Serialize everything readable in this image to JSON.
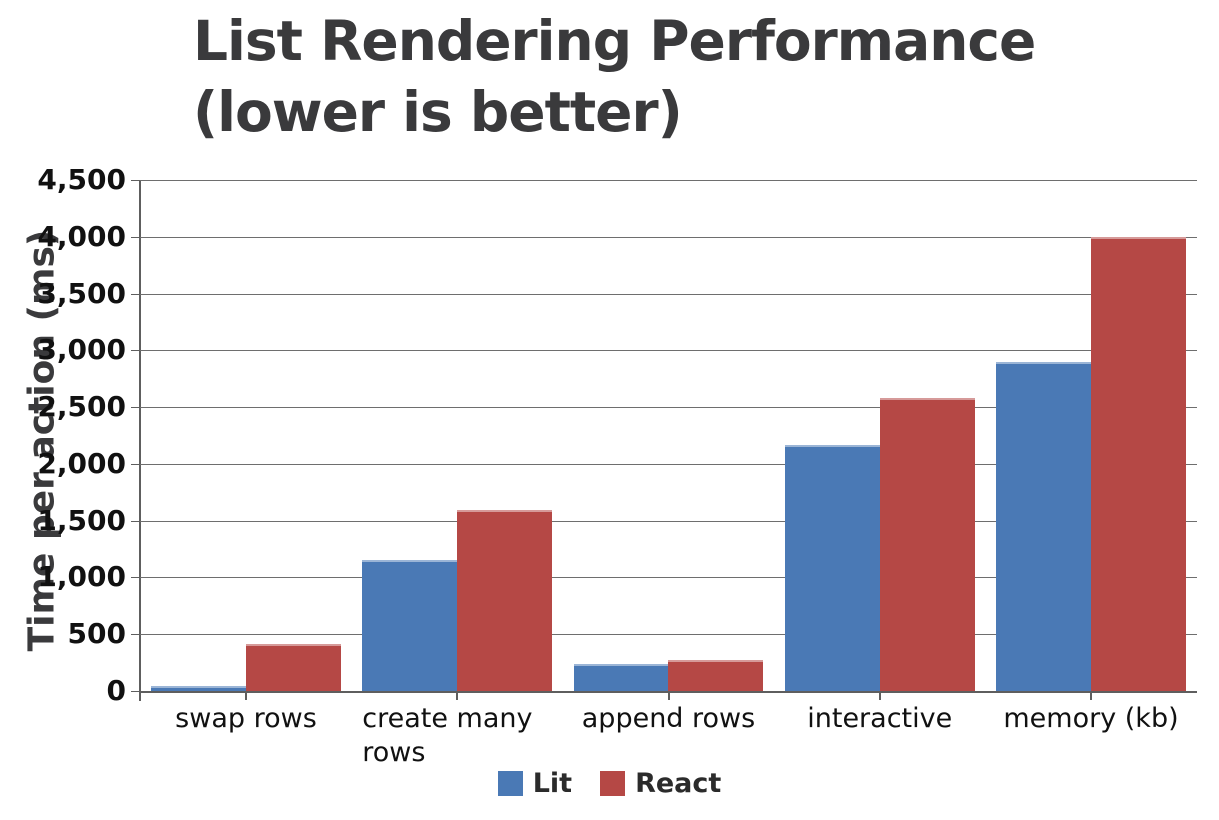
{
  "title": {
    "line1": "List Rendering Performance",
    "line2": "(lower is better)"
  },
  "chart_data": {
    "type": "bar",
    "title": "List Rendering Performance (lower is better)",
    "xlabel": "",
    "ylabel": "Time per action (ms)",
    "ylim": [
      0,
      4500
    ],
    "ytick_step": 500,
    "grid": true,
    "legend_position": "bottom",
    "categories": [
      "swap rows",
      "create many rows",
      "append rows",
      "interactive",
      "memory (kb)"
    ],
    "series": [
      {
        "name": "Lit",
        "color": "#4A79B5",
        "values": [
          45,
          1150,
          240,
          2170,
          2900
        ]
      },
      {
        "name": "React",
        "color": "#B54845",
        "values": [
          410,
          1590,
          270,
          2580,
          4000
        ]
      }
    ]
  },
  "colors": {
    "title_text": "#3A3A3C",
    "axis_line": "#5E5E5E",
    "gridline": "#6E6E6E",
    "tick_label": "#111111",
    "legend_text": "#2B2B2B",
    "background": "#FFFFFF"
  }
}
